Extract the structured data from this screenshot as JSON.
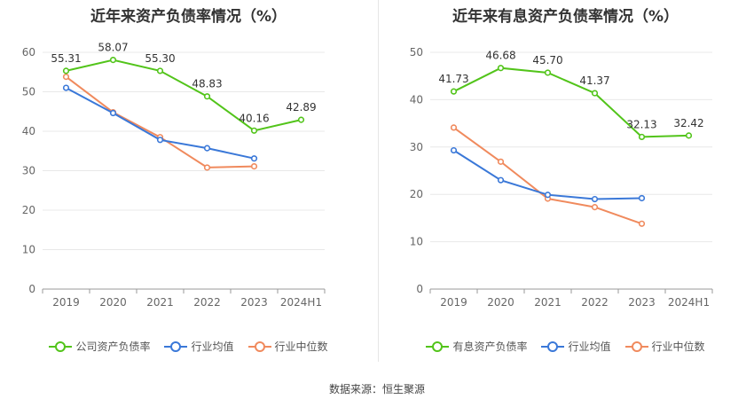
{
  "footer": "数据来源：恒生聚源",
  "chart_data": [
    {
      "type": "line",
      "title": "近年来资产负债率情况（%）",
      "categories": [
        "2019",
        "2020",
        "2021",
        "2022",
        "2023",
        "2024H1"
      ],
      "ylim": [
        0,
        60
      ],
      "yticks": [
        0,
        10,
        20,
        30,
        40,
        50,
        60
      ],
      "grid": true,
      "legend_position": "bottom",
      "series": [
        {
          "name": "公司资产负债率",
          "color": "#52c41a",
          "values": [
            55.31,
            58.07,
            55.3,
            48.83,
            40.16,
            42.89
          ],
          "labels": [
            "55.31",
            "58.07",
            "55.30",
            "48.83",
            "40.16",
            "42.89"
          ]
        },
        {
          "name": "行业均值",
          "color": "#3a78d8",
          "values": [
            51.0,
            44.6,
            37.8,
            35.7,
            33.1,
            null
          ]
        },
        {
          "name": "行业中位数",
          "color": "#f08a5d",
          "values": [
            53.8,
            44.8,
            38.5,
            30.8,
            31.1,
            null
          ]
        }
      ]
    },
    {
      "type": "line",
      "title": "近年来有息资产负债率情况（%）",
      "categories": [
        "2019",
        "2020",
        "2021",
        "2022",
        "2023",
        "2024H1"
      ],
      "ylim": [
        0,
        50
      ],
      "yticks": [
        0,
        10,
        20,
        30,
        40,
        50
      ],
      "grid": true,
      "legend_position": "bottom",
      "series": [
        {
          "name": "有息资产负债率",
          "color": "#52c41a",
          "values": [
            41.73,
            46.68,
            45.7,
            41.37,
            32.13,
            32.42
          ],
          "labels": [
            "41.73",
            "46.68",
            "45.70",
            "41.37",
            "32.13",
            "32.42"
          ]
        },
        {
          "name": "行业均值",
          "color": "#3a78d8",
          "values": [
            29.3,
            23.0,
            19.9,
            19.0,
            19.2,
            null
          ]
        },
        {
          "name": "行业中位数",
          "color": "#f08a5d",
          "values": [
            34.1,
            26.9,
            19.1,
            17.3,
            13.8,
            null
          ]
        }
      ]
    }
  ]
}
